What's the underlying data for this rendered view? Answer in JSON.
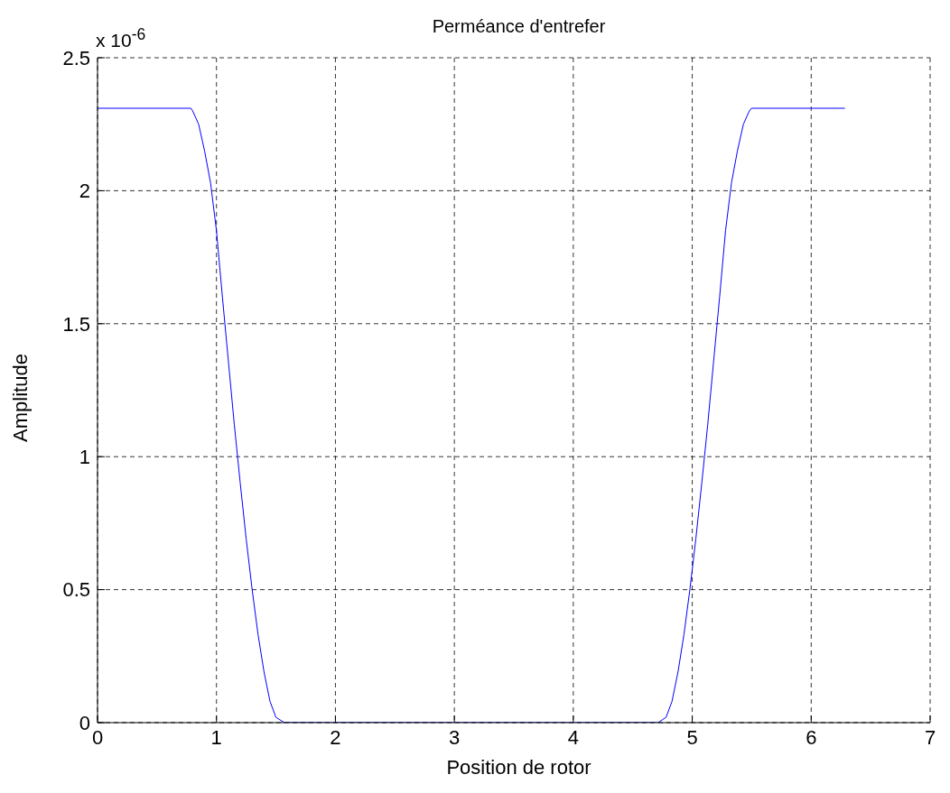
{
  "chart_data": {
    "type": "line",
    "title": "Perméance d'entrefer",
    "xlabel": "Position de rotor",
    "ylabel": "Amplitude",
    "annotations": [
      "x 10$^{-6}$"
    ],
    "x": [
      0,
      0.785,
      0.8,
      0.85,
      0.9,
      0.95,
      1.0,
      1.05,
      1.1,
      1.15,
      1.2,
      1.25,
      1.3,
      1.35,
      1.4,
      1.45,
      1.5,
      1.571,
      4.712,
      4.78,
      4.83,
      4.88,
      4.93,
      4.98,
      5.03,
      5.08,
      5.13,
      5.18,
      5.23,
      5.28,
      5.33,
      5.38,
      5.43,
      5.48,
      5.498,
      6.283
    ],
    "series": [
      {
        "color": "#0000ff",
        "values": [
          2.31,
          2.31,
          2.3,
          2.25,
          2.15,
          2.03,
          1.85,
          1.6,
          1.36,
          1.12,
          0.9,
          0.69,
          0.5,
          0.33,
          0.19,
          0.08,
          0.02,
          0,
          0,
          0.02,
          0.08,
          0.19,
          0.33,
          0.5,
          0.69,
          0.9,
          1.12,
          1.36,
          1.6,
          1.85,
          2.03,
          2.15,
          2.25,
          2.3,
          2.31,
          2.31
        ]
      }
    ],
    "xlim": [
      0,
      7
    ],
    "xticks": [
      0,
      1,
      2,
      3,
      4,
      5,
      6,
      7
    ],
    "ylim": [
      0,
      2.5
    ],
    "yticks": [
      0,
      0.5,
      1,
      1.5,
      2,
      2.5
    ],
    "grid": true,
    "marker": "none",
    "line_style": "solid"
  }
}
